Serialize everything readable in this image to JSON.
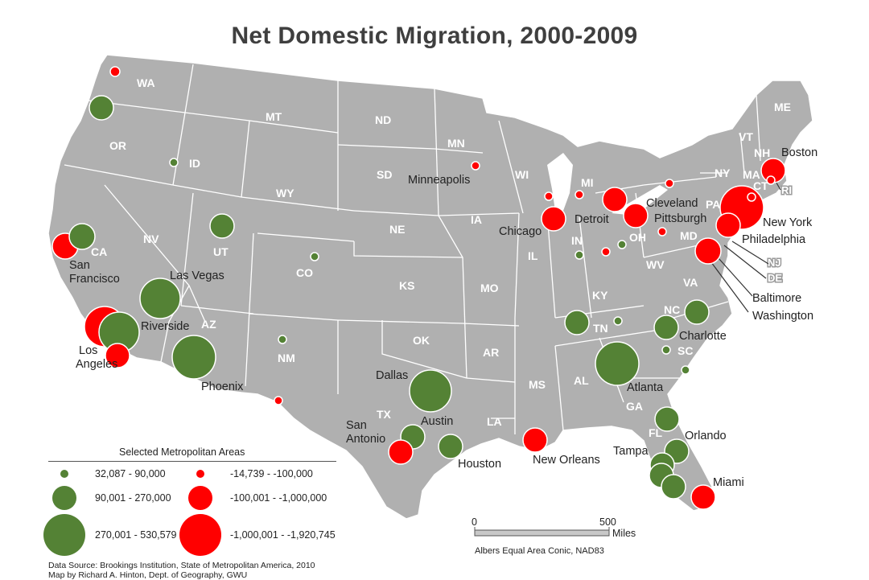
{
  "title": "Net Domestic Migration, 2000-2009",
  "colors": {
    "gain": "#548235",
    "loss": "#ff0000",
    "land": "#b0b0b0",
    "border": "#ffffff"
  },
  "legend": {
    "title": "Selected Metropolitan Areas",
    "gain_classes": [
      "32,087 - 90,000",
      "90,001 - 270,000",
      "270,001 - 530,579"
    ],
    "loss_classes": [
      "-14,739 - -100,000",
      "-100,001 - -1,000,000",
      "-1,000,001 - -1,920,745"
    ]
  },
  "scale_bar": {
    "start": "0",
    "end": "500",
    "unit": "Miles"
  },
  "projection": "Albers Equal Area Conic, NAD83",
  "source": [
    "Data Source: Brookings Institution, State of Metropolitan America, 2010",
    "Map by Richard A. Hinton, Dept. of Geography, GWU"
  ],
  "state_labels": [
    "WA",
    "OR",
    "CA",
    "ID",
    "NV",
    "UT",
    "AZ",
    "MT",
    "WY",
    "CO",
    "NM",
    "ND",
    "SD",
    "NE",
    "KS",
    "OK",
    "TX",
    "MN",
    "IA",
    "MO",
    "AR",
    "LA",
    "WI",
    "IL",
    "MI",
    "IN",
    "OH",
    "KY",
    "TN",
    "MS",
    "AL",
    "GA",
    "FL",
    "SC",
    "NC",
    "VA",
    "WV",
    "PA",
    "NY",
    "VT",
    "NH",
    "ME",
    "MA",
    "CT",
    "RI",
    "MD",
    "NJ",
    "DE"
  ],
  "city_labels": [
    "San Francisco",
    "Las Vegas",
    "Riverside",
    "Los Angeles",
    "Phoenix",
    "Minneapolis",
    "Chicago",
    "Detroit",
    "Cleveland",
    "Pittsburgh",
    "Boston",
    "New York",
    "Philadelphia",
    "Baltimore",
    "Washington",
    "Dallas",
    "Austin",
    "San Antonio",
    "Houston",
    "New Orleans",
    "Atlanta",
    "Charlotte",
    "Orlando",
    "Tampa",
    "Miami"
  ]
}
